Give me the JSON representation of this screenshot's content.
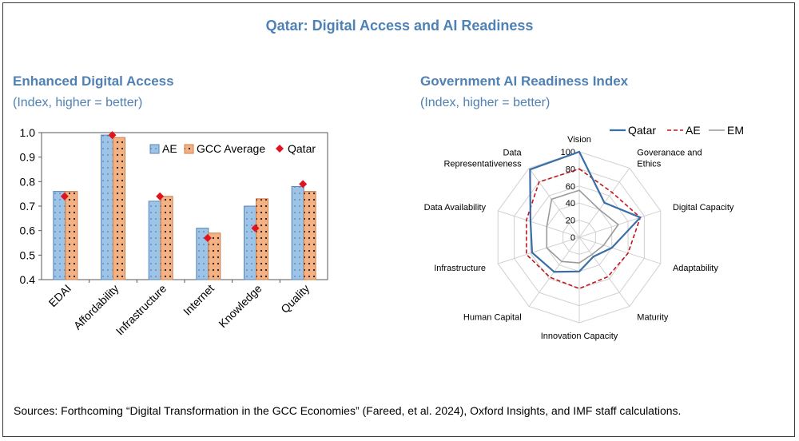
{
  "main_title": "Qatar: Digital Access and AI Readiness",
  "left_panel": {
    "title": "Enhanced Digital Access",
    "subtitle": "(Index, higher = better)"
  },
  "right_panel": {
    "title": "Government AI Readiness Index",
    "subtitle": "(Index, higher = better)"
  },
  "sources": "Sources: Forthcoming “Digital Transformation in the GCC Economies” (Fareed, et al. 2024), Oxford Insights, and IMF staff calculations.",
  "colors": {
    "accent": "#4f81b4",
    "ae_bar": "#9dc3e6",
    "gcc_bar": "#f4b183",
    "qatar_marker": "#e0141e",
    "radar_qatar": "#3a6ea5",
    "radar_ae": "#c0161d",
    "radar_em": "#9a9a9a",
    "grid": "#d0d0d0"
  },
  "chart_data": [
    {
      "type": "bar",
      "categories": [
        "EDAI",
        "Affordability",
        "Infrastructure",
        "Internet",
        "Knowledge",
        "Quality"
      ],
      "series": [
        {
          "name": "AE",
          "values": [
            0.76,
            0.99,
            0.72,
            0.61,
            0.7,
            0.78
          ]
        },
        {
          "name": "GCC Average",
          "values": [
            0.76,
            0.98,
            0.74,
            0.59,
            0.73,
            0.76
          ]
        },
        {
          "name": "Qatar",
          "marker": "diamond",
          "values": [
            0.74,
            0.99,
            0.74,
            0.57,
            0.61,
            0.79
          ]
        }
      ],
      "ylim": [
        0.4,
        1.0
      ],
      "yticks": [
        "0.4",
        "0.5",
        "0.6",
        "0.7",
        "0.8",
        "0.9",
        "1.0"
      ],
      "legend_position": "top-right"
    },
    {
      "type": "radar",
      "axes": [
        "Vision",
        "Goveranace and Ethics",
        "Digital Capacity",
        "Adaptability",
        "Maturity",
        "Innovation Capacity",
        "Human Capital",
        "Infrastructure",
        "Data Availability",
        "Data Representativeness"
      ],
      "axis_label_lines": [
        [
          "Vision"
        ],
        [
          "Goveranace and",
          "Ethics"
        ],
        [
          "Digital Capacity"
        ],
        [
          "Adaptability"
        ],
        [
          "Maturity"
        ],
        [
          "Innovation Capacity"
        ],
        [
          "Human Capital"
        ],
        [
          "Infrastructure"
        ],
        [
          "Data Availability"
        ],
        [
          "Data",
          "Representativeness"
        ]
      ],
      "series": [
        {
          "name": "Qatar",
          "style": "solid",
          "values": [
            100,
            50,
            75,
            40,
            28,
            40,
            50,
            58,
            60,
            98
          ]
        },
        {
          "name": "AE",
          "style": "dashed",
          "values": [
            80,
            65,
            75,
            60,
            57,
            60,
            58,
            65,
            65,
            80
          ]
        },
        {
          "name": "EM",
          "style": "solid",
          "values": [
            55,
            40,
            48,
            30,
            25,
            30,
            35,
            40,
            40,
            55
          ]
        }
      ],
      "rticks": [
        "0",
        "20",
        "40",
        "60",
        "80",
        "100"
      ],
      "rlim": [
        0,
        100
      ],
      "legend_position": "top"
    }
  ]
}
